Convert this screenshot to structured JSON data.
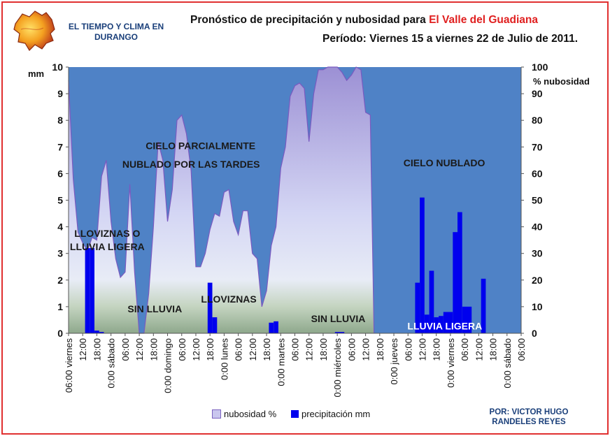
{
  "header": {
    "brand": "EL TIEMPO Y CLIMA EN DURANGO",
    "title_prefix": "Pronóstico de precipitación y nubosidad para ",
    "title_location": "El Valle del Guadiana",
    "subtitle": "Período: Viernes 15 a viernes 22 de Julio de 2011."
  },
  "credit": "POR: VICTOR HUGO RANDELES REYES",
  "legend": {
    "cloud": "nubosidad %",
    "precip": "precipitación mm"
  },
  "annotations": [
    {
      "id": "cielo-parcial-1",
      "text": "CIELO  PARCIALMENTE",
      "x": 28,
      "y": 7.05
    },
    {
      "id": "cielo-parcial-2",
      "text": "NUBLADO POR LAS TARDES",
      "x": 26,
      "y": 6.35
    },
    {
      "id": "lloviznas-o",
      "text": "LLOVIZNAS O",
      "x": 8.2,
      "y": 3.75
    },
    {
      "id": "lluvia-ligera-1",
      "text": "LLUVIA LIGERA",
      "x": 8.2,
      "y": 3.25
    },
    {
      "id": "sin-lluvia-1",
      "text": "SIN LLUVIA",
      "x": 18.3,
      "y": 0.92
    },
    {
      "id": "lloviznas",
      "text": "LLOVIZNAS",
      "x": 34,
      "y": 1.28
    },
    {
      "id": "sin-lluvia-2",
      "text": "SIN LLUVIA",
      "x": 57.2,
      "y": 0.55
    },
    {
      "id": "cielo-nublado",
      "text": "CIELO  NUBLADO",
      "x": 79.7,
      "y": 6.4
    }
  ],
  "highlight_label": {
    "text": "LLUVIA LIGERA",
    "x": 79.8,
    "y": 0.28
  },
  "colors": {
    "sky": "#4f82c6",
    "accent": "#e02020",
    "bar": "#0000ee",
    "cloud_line": "#7a5ac0"
  },
  "chart_data": {
    "type": "bar+area",
    "title": "Pronóstico de precipitación y nubosidad para El Valle del Guadiana",
    "x_interval_hours": 2,
    "x_start": "06:00 viernes",
    "x_ticks": [
      {
        "i": 0,
        "label": "06:00 viernes"
      },
      {
        "i": 3,
        "label": "12:00"
      },
      {
        "i": 6,
        "label": "18:00"
      },
      {
        "i": 9,
        "label": "0:00 sábado"
      },
      {
        "i": 12,
        "label": "06:00"
      },
      {
        "i": 15,
        "label": "12:00"
      },
      {
        "i": 18,
        "label": "18:00"
      },
      {
        "i": 21,
        "label": "0:00 domingo"
      },
      {
        "i": 24,
        "label": "06:00"
      },
      {
        "i": 27,
        "label": "12:00"
      },
      {
        "i": 30,
        "label": "18:00"
      },
      {
        "i": 33,
        "label": "0:00 lunes"
      },
      {
        "i": 36,
        "label": "06:00"
      },
      {
        "i": 39,
        "label": "12:00"
      },
      {
        "i": 42,
        "label": "18:00"
      },
      {
        "i": 45,
        "label": "0:00 martes"
      },
      {
        "i": 48,
        "label": "06:00"
      },
      {
        "i": 51,
        "label": "12:00"
      },
      {
        "i": 54,
        "label": "18:00"
      },
      {
        "i": 57,
        "label": "0:00 miércoles"
      },
      {
        "i": 60,
        "label": "06:00"
      },
      {
        "i": 63,
        "label": "12:00"
      },
      {
        "i": 66,
        "label": "18:00"
      },
      {
        "i": 69,
        "label": "0:00 jueves"
      },
      {
        "i": 72,
        "label": "06:00"
      },
      {
        "i": 75,
        "label": "12:00"
      },
      {
        "i": 78,
        "label": "18:00"
      },
      {
        "i": 81,
        "label": "0:00 viernes"
      },
      {
        "i": 84,
        "label": "06:00"
      },
      {
        "i": 87,
        "label": "12:00"
      },
      {
        "i": 90,
        "label": "18:00"
      },
      {
        "i": 93,
        "label": "0:00 sábado"
      },
      {
        "i": 96,
        "label": "06:00"
      }
    ],
    "y_left": {
      "label": "mm",
      "min": 0,
      "max": 10,
      "ticks": [
        0,
        1,
        2,
        3,
        4,
        5,
        6,
        7,
        8,
        9,
        10
      ]
    },
    "y_right": {
      "label": "% nubosidad",
      "min": 0,
      "max": 100,
      "ticks": [
        0,
        10,
        20,
        30,
        40,
        50,
        60,
        70,
        80,
        90,
        100
      ]
    },
    "series": [
      {
        "name": "nubosidad %",
        "type": "area",
        "axis": "right",
        "values": [
          95,
          58,
          38,
          34,
          31,
          36,
          35,
          59,
          65,
          42,
          28,
          21,
          23,
          56,
          23,
          0,
          0,
          15,
          40,
          72,
          65,
          42,
          54,
          80,
          82,
          75,
          61,
          25,
          25,
          30,
          39,
          45,
          44,
          53,
          54,
          42,
          37,
          46,
          46,
          30,
          28,
          10,
          16,
          33,
          40,
          62,
          70,
          89,
          93,
          94,
          92,
          72,
          90,
          99,
          99,
          100,
          100,
          100,
          98,
          95,
          97,
          100,
          99,
          83,
          82,
          0
        ],
        "x_index": [
          0,
          1,
          2,
          3,
          4,
          5,
          6,
          7,
          8,
          9,
          10,
          11,
          12,
          13,
          14,
          15,
          16,
          17,
          18,
          19,
          20,
          21,
          22,
          23,
          24,
          25,
          26,
          27,
          28,
          29,
          30,
          31,
          32,
          33,
          34,
          35,
          36,
          37,
          38,
          39,
          40,
          41,
          42,
          43,
          44,
          45,
          46,
          47,
          48,
          49,
          50,
          51,
          52,
          53,
          54,
          55,
          56,
          57,
          58,
          59,
          60,
          61,
          62,
          63,
          64,
          64.8
        ]
      },
      {
        "name": "precipitación mm",
        "type": "bar",
        "axis": "left",
        "x_index": [
          4,
          5,
          6,
          7,
          30,
          31,
          43,
          44,
          57,
          58,
          74,
          75,
          76,
          77,
          78,
          79,
          80,
          81,
          82,
          83,
          84,
          85,
          86,
          87,
          88
        ],
        "values": [
          3.2,
          3.2,
          0.1,
          0.05,
          1.9,
          0.6,
          0.4,
          0.45,
          0.05,
          0.05,
          1.9,
          5.1,
          0.7,
          2.35,
          0.6,
          0.65,
          0.8,
          0.8,
          3.8,
          4.55,
          1.0,
          1.0,
          0,
          0,
          2.05
        ]
      }
    ]
  }
}
